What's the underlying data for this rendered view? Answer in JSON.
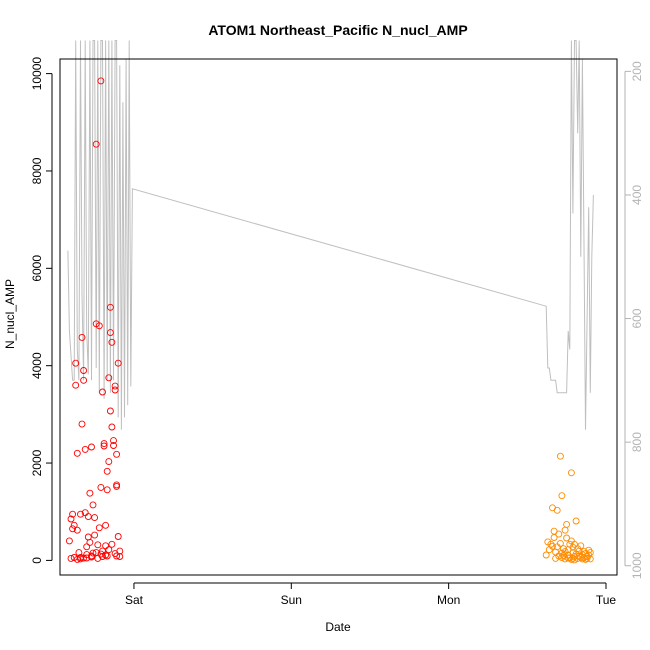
{
  "chart_data": {
    "type": "scatter",
    "title": "ATOM1 Northeast_Pacific N_nucl_AMP",
    "xlabel": "Date",
    "ylabel": "N_nucl_AMP",
    "x_unit": "days (Fri 00:00 = 0)",
    "xlim": [
      0.53,
      4.07
    ],
    "ylim": [
      -300,
      10300
    ],
    "x_ticks": [
      {
        "value": 1,
        "label": "Sat"
      },
      {
        "value": 2,
        "label": "Sun"
      },
      {
        "value": 3,
        "label": "Mon"
      },
      {
        "value": 4,
        "label": "Tue"
      }
    ],
    "y_ticks": [
      0,
      2000,
      4000,
      6000,
      8000,
      10000
    ],
    "right_axis": {
      "reversed": true,
      "range": [
        1015,
        180
      ],
      "ticks": [
        200,
        400,
        600,
        800,
        1000
      ],
      "color": "#b3b3b3"
    },
    "grid": false,
    "series": [
      {
        "color": "#ff0000",
        "points": [
          [
            0.59,
            400
          ],
          [
            0.6,
            850
          ],
          [
            0.61,
            950
          ],
          [
            0.61,
            650
          ],
          [
            0.62,
            720
          ],
          [
            0.63,
            3600
          ],
          [
            0.63,
            4050
          ],
          [
            0.64,
            2200
          ],
          [
            0.64,
            620
          ],
          [
            0.65,
            160
          ],
          [
            0.66,
            950
          ],
          [
            0.66,
            60
          ],
          [
            0.67,
            2800
          ],
          [
            0.67,
            4580
          ],
          [
            0.68,
            3700
          ],
          [
            0.68,
            3900
          ],
          [
            0.69,
            2280
          ],
          [
            0.69,
            980
          ],
          [
            0.7,
            280
          ],
          [
            0.7,
            50
          ],
          [
            0.71,
            900
          ],
          [
            0.71,
            480
          ],
          [
            0.72,
            1380
          ],
          [
            0.72,
            370
          ],
          [
            0.73,
            2330
          ],
          [
            0.73,
            70
          ],
          [
            0.74,
            1140
          ],
          [
            0.74,
            150
          ],
          [
            0.75,
            520
          ],
          [
            0.75,
            880
          ],
          [
            0.76,
            8550
          ],
          [
            0.76,
            4860
          ],
          [
            0.77,
            320
          ],
          [
            0.77,
            40
          ],
          [
            0.78,
            4820
          ],
          [
            0.78,
            670
          ],
          [
            0.79,
            9850
          ],
          [
            0.79,
            1500
          ],
          [
            0.8,
            80
          ],
          [
            0.8,
            190
          ],
          [
            0.81,
            2400
          ],
          [
            0.81,
            2350
          ],
          [
            0.82,
            720
          ],
          [
            0.82,
            300
          ],
          [
            0.83,
            1830
          ],
          [
            0.83,
            90
          ],
          [
            0.84,
            3750
          ],
          [
            0.84,
            2030
          ],
          [
            0.85,
            5200
          ],
          [
            0.85,
            4680
          ],
          [
            0.86,
            4480
          ],
          [
            0.86,
            2740
          ],
          [
            0.87,
            2360
          ],
          [
            0.87,
            2460
          ],
          [
            0.88,
            3580
          ],
          [
            0.88,
            3500
          ],
          [
            0.89,
            1520
          ],
          [
            0.89,
            1550
          ],
          [
            0.9,
            4050
          ],
          [
            0.9,
            490
          ],
          [
            0.91,
            190
          ],
          [
            0.91,
            80
          ],
          [
            0.88,
            140
          ],
          [
            0.89,
            90
          ],
          [
            0.86,
            330
          ],
          [
            0.84,
            220
          ],
          [
            0.82,
            110
          ],
          [
            0.79,
            130
          ],
          [
            0.76,
            160
          ],
          [
            0.73,
            90
          ],
          [
            0.7,
            120
          ],
          [
            0.68,
            50
          ],
          [
            0.66,
            30
          ],
          [
            0.64,
            20
          ],
          [
            0.62,
            60
          ],
          [
            0.6,
            40
          ],
          [
            0.85,
            3070
          ],
          [
            0.89,
            2180
          ],
          [
            0.83,
            1450
          ],
          [
            0.8,
            3460
          ]
        ]
      },
      {
        "color": "#ff8c00",
        "points": [
          [
            3.62,
            110
          ],
          [
            3.63,
            380
          ],
          [
            3.64,
            220
          ],
          [
            3.65,
            330
          ],
          [
            3.66,
            290
          ],
          [
            3.66,
            1080
          ],
          [
            3.67,
            470
          ],
          [
            3.67,
            600
          ],
          [
            3.68,
            170
          ],
          [
            3.69,
            1030
          ],
          [
            3.69,
            280
          ],
          [
            3.7,
            540
          ],
          [
            3.71,
            2140
          ],
          [
            3.71,
            350
          ],
          [
            3.72,
            150
          ],
          [
            3.72,
            1330
          ],
          [
            3.73,
            240
          ],
          [
            3.73,
            100
          ],
          [
            3.74,
            620
          ],
          [
            3.74,
            180
          ],
          [
            3.75,
            740
          ],
          [
            3.75,
            460
          ],
          [
            3.76,
            220
          ],
          [
            3.76,
            110
          ],
          [
            3.77,
            330
          ],
          [
            3.77,
            50
          ],
          [
            3.78,
            400
          ],
          [
            3.78,
            1800
          ],
          [
            3.79,
            270
          ],
          [
            3.79,
            160
          ],
          [
            3.8,
            80
          ],
          [
            3.8,
            330
          ],
          [
            3.81,
            810
          ],
          [
            3.81,
            130
          ],
          [
            3.82,
            40
          ],
          [
            3.82,
            240
          ],
          [
            3.83,
            90
          ],
          [
            3.83,
            190
          ],
          [
            3.84,
            60
          ],
          [
            3.84,
            300
          ],
          [
            3.85,
            120
          ],
          [
            3.85,
            30
          ],
          [
            3.86,
            180
          ],
          [
            3.86,
            60
          ],
          [
            3.87,
            20
          ],
          [
            3.87,
            140
          ],
          [
            3.88,
            80
          ],
          [
            3.88,
            40
          ],
          [
            3.89,
            210
          ],
          [
            3.89,
            110
          ],
          [
            3.9,
            30
          ],
          [
            3.9,
            160
          ],
          [
            3.78,
            20
          ],
          [
            3.79,
            40
          ],
          [
            3.8,
            10
          ],
          [
            3.76,
            50
          ],
          [
            3.74,
            30
          ],
          [
            3.72,
            60
          ],
          [
            3.7,
            90
          ],
          [
            3.68,
            40
          ]
        ]
      }
    ],
    "line_right_axis": {
      "color": "#bfbfbf",
      "points": [
        [
          0.58,
          490
        ],
        [
          0.59,
          620
        ],
        [
          0.6,
          660
        ],
        [
          0.61,
          700
        ],
        [
          0.62,
          700
        ],
        [
          0.63,
          150
        ],
        [
          0.64,
          650
        ],
        [
          0.65,
          700
        ],
        [
          0.66,
          150
        ],
        [
          0.67,
          560
        ],
        [
          0.68,
          700
        ],
        [
          0.69,
          150
        ],
        [
          0.7,
          620
        ],
        [
          0.71,
          690
        ],
        [
          0.72,
          150
        ],
        [
          0.73,
          700
        ],
        [
          0.74,
          150
        ],
        [
          0.75,
          150
        ],
        [
          0.76,
          680
        ],
        [
          0.77,
          150
        ],
        [
          0.78,
          720
        ],
        [
          0.79,
          150
        ],
        [
          0.8,
          150
        ],
        [
          0.81,
          730
        ],
        [
          0.82,
          150
        ],
        [
          0.83,
          700
        ],
        [
          0.84,
          150
        ],
        [
          0.85,
          720
        ],
        [
          0.86,
          150
        ],
        [
          0.87,
          700
        ],
        [
          0.88,
          150
        ],
        [
          0.89,
          150
        ],
        [
          0.9,
          760
        ],
        [
          0.91,
          190
        ],
        [
          0.92,
          780
        ],
        [
          0.93,
          250
        ],
        [
          0.94,
          760
        ],
        [
          0.95,
          180
        ],
        [
          0.96,
          740
        ],
        [
          0.97,
          150
        ],
        [
          0.98,
          710
        ],
        [
          0.99,
          390
        ],
        [
          3.62,
          580
        ],
        [
          3.63,
          680
        ],
        [
          3.64,
          680
        ],
        [
          3.65,
          700
        ],
        [
          3.66,
          700
        ],
        [
          3.67,
          700
        ],
        [
          3.68,
          700
        ],
        [
          3.69,
          720
        ],
        [
          3.7,
          720
        ],
        [
          3.71,
          720
        ],
        [
          3.72,
          720
        ],
        [
          3.73,
          720
        ],
        [
          3.74,
          720
        ],
        [
          3.75,
          720
        ],
        [
          3.76,
          620
        ],
        [
          3.77,
          650
        ],
        [
          3.78,
          150
        ],
        [
          3.79,
          430
        ],
        [
          3.8,
          150
        ],
        [
          3.81,
          150
        ],
        [
          3.82,
          300
        ],
        [
          3.83,
          150
        ],
        [
          3.84,
          500
        ],
        [
          3.85,
          180
        ],
        [
          3.86,
          480
        ],
        [
          3.87,
          780
        ],
        [
          3.88,
          600
        ],
        [
          3.89,
          420
        ],
        [
          3.9,
          720
        ],
        [
          3.91,
          500
        ],
        [
          3.92,
          400
        ]
      ]
    }
  }
}
